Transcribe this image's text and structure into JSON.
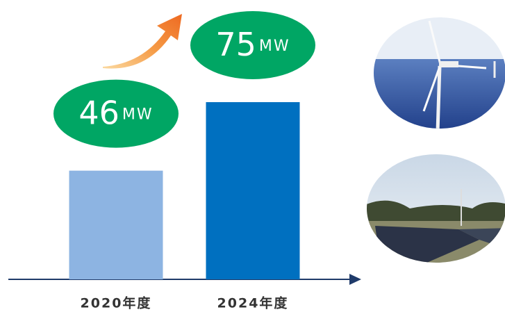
{
  "chart_data": {
    "type": "bar",
    "categories": [
      "2020年度",
      "2024年度"
    ],
    "values": [
      46,
      75
    ],
    "value_labels": [
      "46MW",
      "75MW"
    ],
    "colors": [
      "#8db4e2",
      "#0070c0"
    ],
    "label_color": "#00a664",
    "ylim": [
      0,
      100
    ]
  }
}
